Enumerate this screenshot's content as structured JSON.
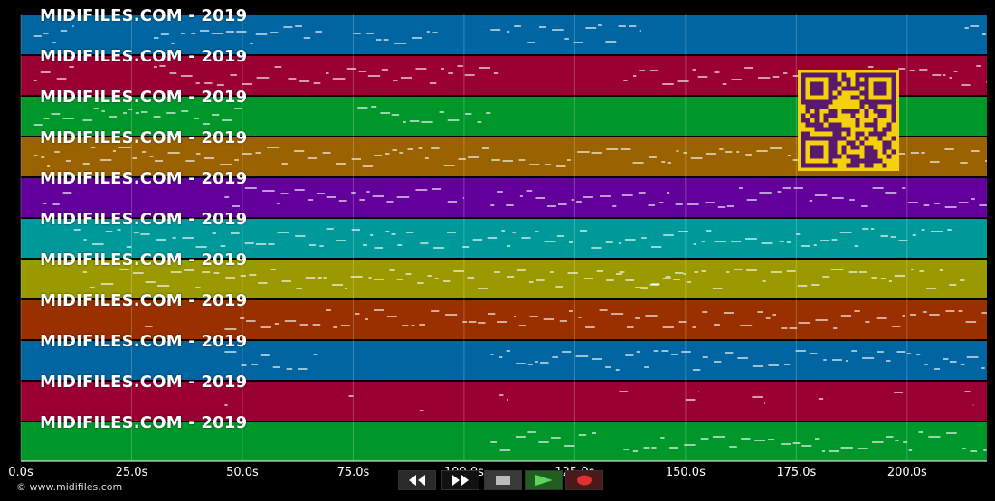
{
  "tracks": [
    {
      "label": "MIDIFILES.COM - 2019",
      "color": "#0065a0"
    },
    {
      "label": "MIDIFILES.COM - 2019",
      "color": "#9b0033"
    },
    {
      "label": "MIDIFILES.COM - 2019",
      "color": "#00972a"
    },
    {
      "label": "MIDIFILES.COM - 2019",
      "color": "#9a6300"
    },
    {
      "label": "MIDIFILES.COM - 2019",
      "color": "#63009b"
    },
    {
      "label": "MIDIFILES.COM - 2019",
      "color": "#00999a"
    },
    {
      "label": "MIDIFILES.COM - 2019",
      "color": "#9a9a00"
    },
    {
      "label": "MIDIFILES.COM - 2019",
      "color": "#9a3000"
    },
    {
      "label": "MIDIFILES.COM - 2019",
      "color": "#0065a0"
    },
    {
      "label": "MIDIFILES.COM - 2019",
      "color": "#9b0033"
    },
    {
      "label": "MIDIFILES.COM - 2019",
      "color": "#00972a"
    }
  ],
  "timeline": {
    "ticks": [
      "0.0s",
      "25.0s",
      "50.0s",
      "75.0s",
      "100.0s",
      "125.0s",
      "150.0s",
      "175.0s",
      "200.0s"
    ],
    "max_seconds": 218
  },
  "copyright": "© www.midifiles.com",
  "transport": {
    "rewind_icon": "rewind-icon",
    "ff_icon": "fast-forward-icon",
    "stop_icon": "stop-icon",
    "play_icon": "play-icon",
    "record_icon": "record-icon"
  },
  "colors": {
    "qr_fg": "#5a1a6b",
    "qr_bg": "#f5d10b",
    "note": "#ffffff"
  }
}
